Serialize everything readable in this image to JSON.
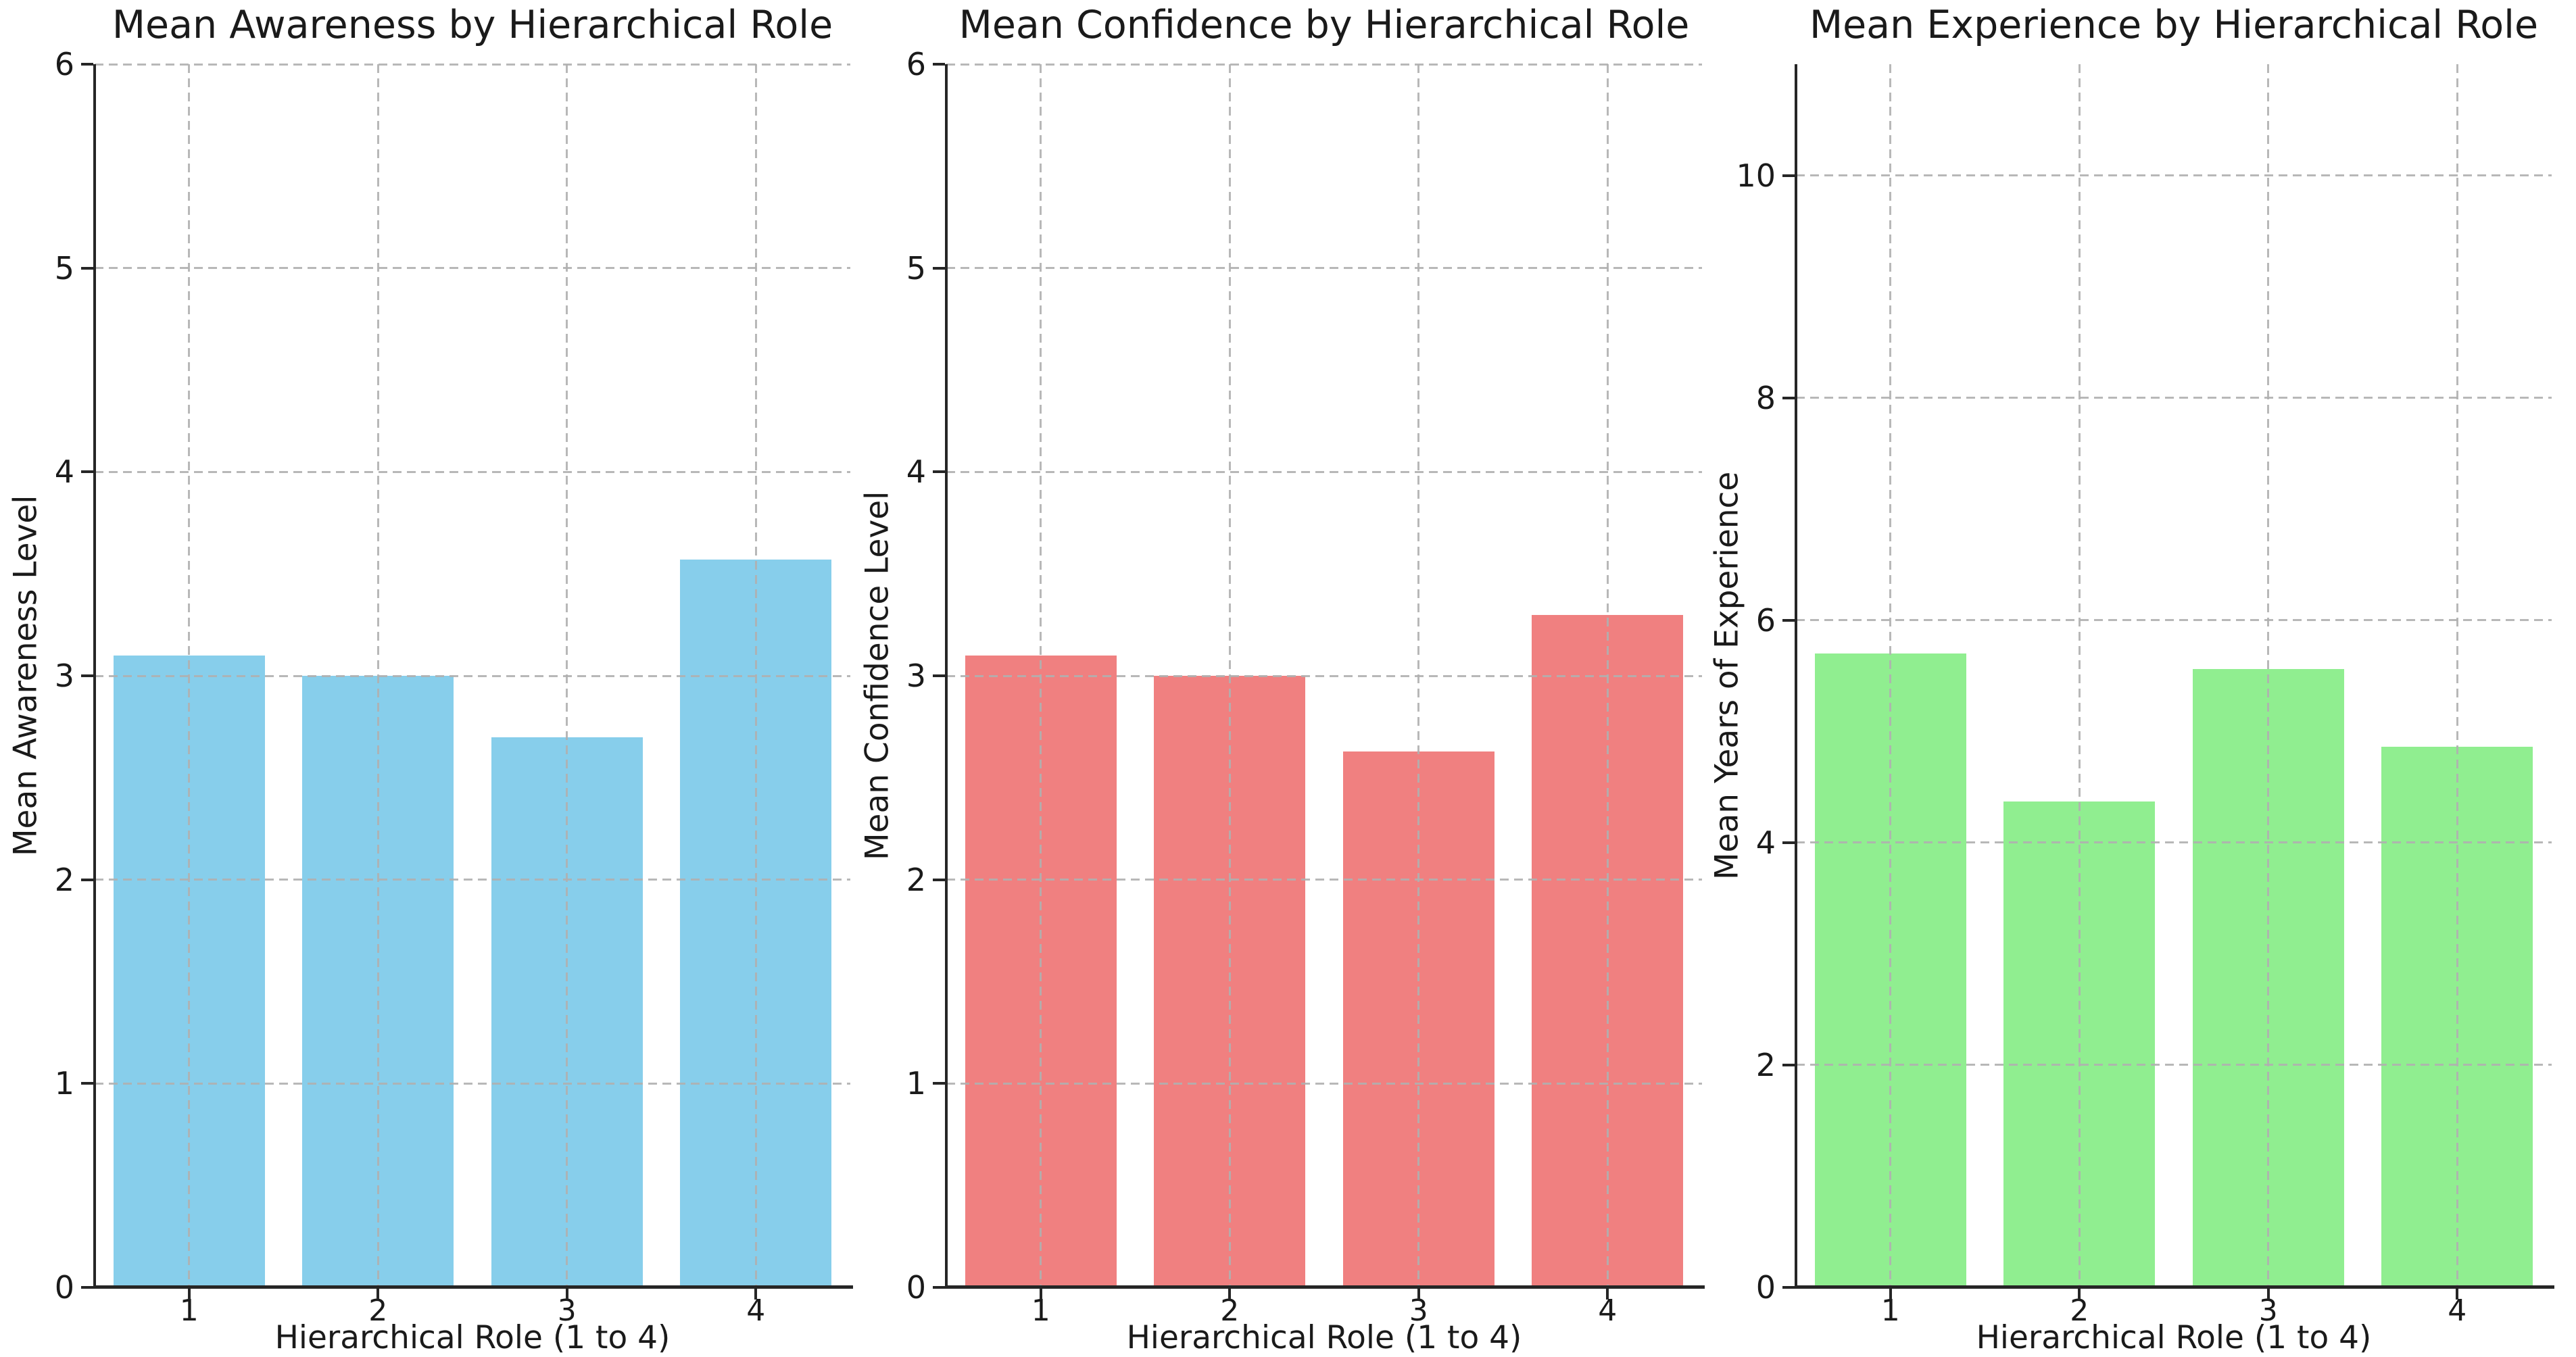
{
  "figure": {
    "background_color": "#ffffff",
    "text_color": "#1a1a1a",
    "grid_color": "#b0b0b0",
    "spine_color": "#262626"
  },
  "chart_data": [
    {
      "type": "bar",
      "title": "Mean Awareness by Hierarchical Role",
      "xlabel": "Hierarchical Role (1 to 4)",
      "ylabel": "Mean Awareness Level",
      "categories": [
        "1",
        "2",
        "3",
        "4"
      ],
      "values": [
        3.1,
        3.0,
        2.7,
        3.57
      ],
      "bar_color": "#87CEEB",
      "ylim": [
        0,
        6
      ],
      "yticks": [
        0,
        1,
        2,
        3,
        4,
        5,
        6
      ],
      "grid": "dashed-both-axes",
      "legend": "none",
      "bar_width_fraction": 0.8
    },
    {
      "type": "bar",
      "title": "Mean Confidence by Hierarchical Role",
      "xlabel": "Hierarchical Role (1 to 4)",
      "ylabel": "Mean Confidence Level",
      "categories": [
        "1",
        "2",
        "3",
        "4"
      ],
      "values": [
        3.1,
        3.0,
        2.63,
        3.3
      ],
      "bar_color": "#F08080",
      "ylim": [
        0,
        6
      ],
      "yticks": [
        0,
        1,
        2,
        3,
        4,
        5,
        6
      ],
      "grid": "dashed-both-axes",
      "legend": "none",
      "bar_width_fraction": 0.8
    },
    {
      "type": "bar",
      "title": "Mean Experience by Hierarchical Role",
      "xlabel": "Hierarchical Role (1 to 4)",
      "ylabel": "Mean Years of Experience",
      "categories": [
        "1",
        "2",
        "3",
        "4"
      ],
      "values": [
        5.7,
        4.37,
        5.56,
        4.86
      ],
      "bar_color": "#90EE90",
      "ylim": [
        0,
        11
      ],
      "yticks": [
        0,
        2,
        4,
        6,
        8,
        10
      ],
      "grid": "dashed-both-axes",
      "legend": "none",
      "bar_width_fraction": 0.8
    }
  ]
}
